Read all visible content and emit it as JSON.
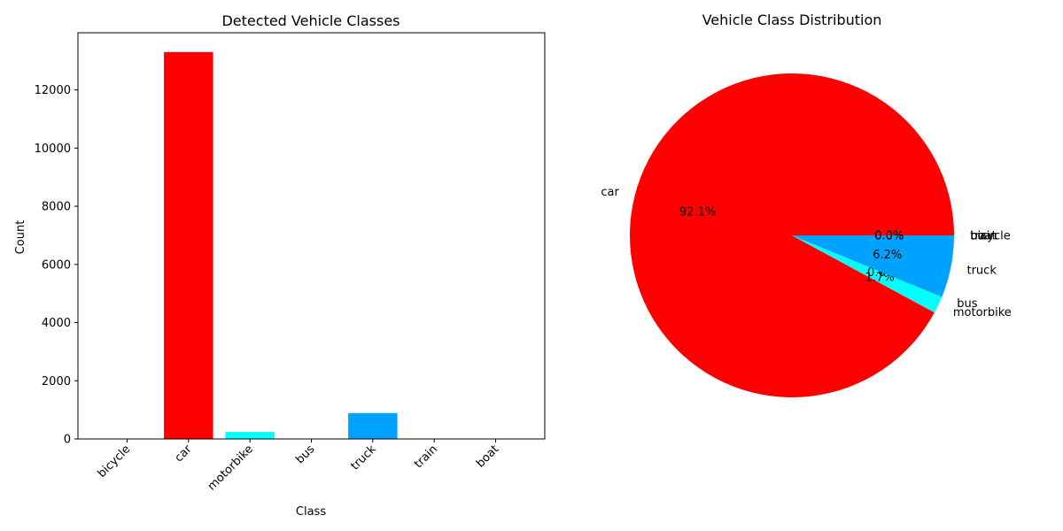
{
  "chart_data": [
    {
      "type": "bar",
      "title": "Detected Vehicle Classes",
      "xlabel": "Class",
      "ylabel": "Count",
      "categories": [
        "bicycle",
        "car",
        "motorbike",
        "bus",
        "truck",
        "train",
        "boat"
      ],
      "values": [
        0,
        13300,
        240,
        0,
        890,
        0,
        0
      ],
      "colors": [
        "#ff0000",
        "#ff0000",
        "#00ffff",
        "#00a2ff",
        "#00a2ff",
        "#ff0000",
        "#ff0000"
      ],
      "ylim": [
        0,
        13965
      ],
      "yticks": [
        0,
        2000,
        4000,
        6000,
        8000,
        10000,
        12000
      ],
      "grid": false
    },
    {
      "type": "pie",
      "title": "Vehicle Class Distribution",
      "labels": [
        "car",
        "motorbike",
        "bus",
        "truck",
        "train",
        "boat",
        "bicycle"
      ],
      "values": [
        92.1,
        1.7,
        0.0,
        6.2,
        0.0,
        0.0,
        0.0
      ],
      "pct_labels": [
        "92.1%",
        "1.7%",
        "0.0%",
        "6.2%",
        "0.0%",
        "0.0%",
        "0.0%"
      ],
      "colors": [
        "#ff0000",
        "#00ffff",
        "#00ffff",
        "#00a2ff",
        "#00a2ff",
        "#00a2ff",
        "#00a2ff"
      ]
    }
  ]
}
